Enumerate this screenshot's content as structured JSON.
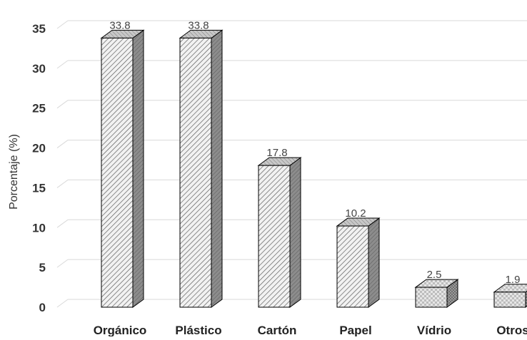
{
  "chart_data": {
    "type": "bar",
    "style": "3d-column-hatched",
    "categories": [
      "Orgánico",
      "Plástico",
      "Cartón",
      "Papel",
      "Vídrio",
      "Otros"
    ],
    "values": [
      33.8,
      33.8,
      17.8,
      10.2,
      2.5,
      1.9
    ],
    "data_labels": [
      "33.8",
      "33.8",
      "17.8",
      "10.2",
      "2.5",
      "1.9"
    ],
    "title": "",
    "xlabel": "",
    "ylabel": "Porcentaje (%)",
    "ylim": [
      0,
      35
    ],
    "yticks": [
      0,
      5,
      10,
      15,
      20,
      25,
      30,
      35
    ],
    "grid": true,
    "legend": "none",
    "colors": {
      "bar_front": "#f2f2f2",
      "bar_stroke": "#000000",
      "bar_side": "#8c8c8c",
      "bar_top": "#bdbdbd",
      "hatch": "#555555"
    }
  }
}
